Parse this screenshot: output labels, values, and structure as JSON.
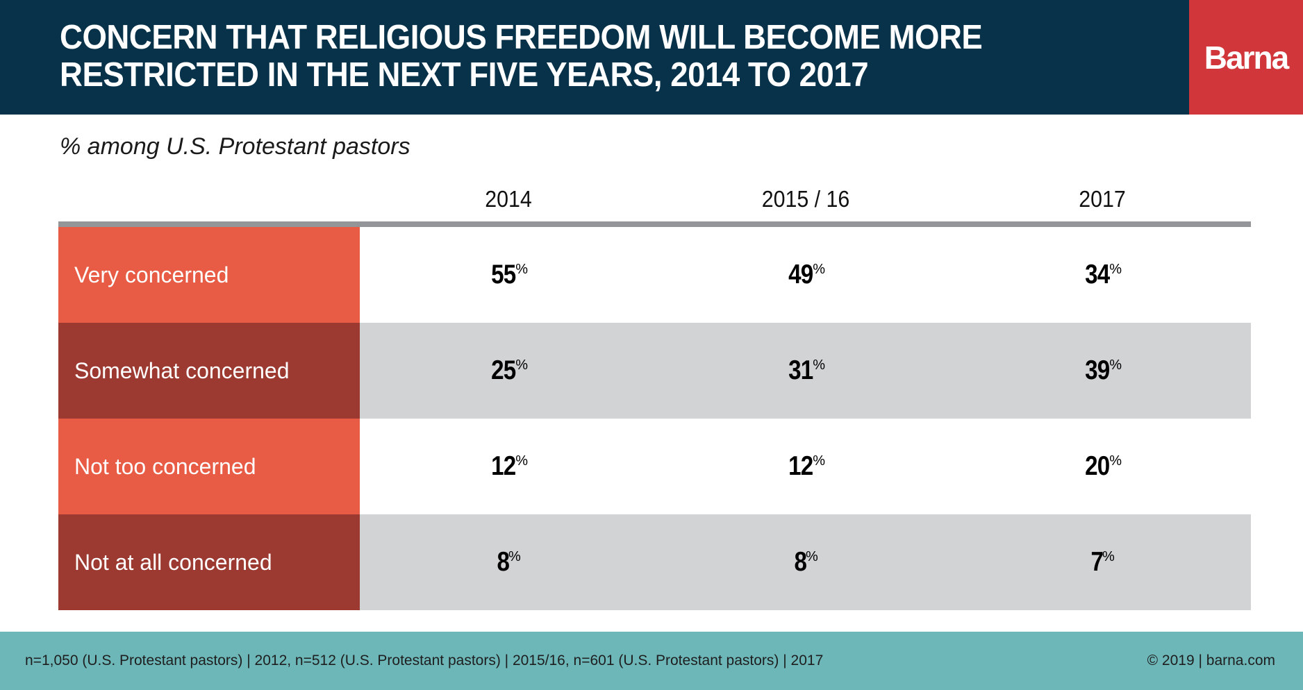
{
  "header": {
    "title_lines": [
      "CONCERN THAT RELIGIOUS FREEDOM WILL BECOME MORE",
      "RESTRICTED IN THE NEXT FIVE YEARS, 2014 TO 2017"
    ],
    "logo": "Barna"
  },
  "subtitle": "% among U.S. Protestant pastors",
  "footer": {
    "source": "n=1,050 (U.S. Protestant pastors) | 2012, n=512 (U.S. Protestant pastors) | 2015/16, n=601 (U.S. Protestant pastors) | 2017",
    "copyright": "© 2019 | barna.com"
  },
  "colors": {
    "header_bg": "#07324a",
    "logo_bg": "#d1363a",
    "label_light": "#e85c45",
    "label_dark": "#9c3a32",
    "row_alt": "#d1d3d4",
    "rule": "#939598",
    "footer_bg": "#6db7b9"
  },
  "chart_data": {
    "type": "table",
    "title": "CONCERN THAT RELIGIOUS FREEDOM WILL BECOME MORE RESTRICTED IN THE NEXT FIVE YEARS, 2014 TO 2017",
    "subtitle": "% among U.S. Protestant pastors",
    "columns": [
      "2014",
      "2015 / 16",
      "2017"
    ],
    "unit": "%",
    "rows": [
      {
        "label": "Very concerned",
        "values": [
          55,
          49,
          34
        ]
      },
      {
        "label": "Somewhat concerned",
        "values": [
          25,
          31,
          39
        ]
      },
      {
        "label": "Not too concerned",
        "values": [
          12,
          12,
          20
        ]
      },
      {
        "label": "Not at all concerned",
        "values": [
          8,
          8,
          7
        ]
      }
    ]
  }
}
